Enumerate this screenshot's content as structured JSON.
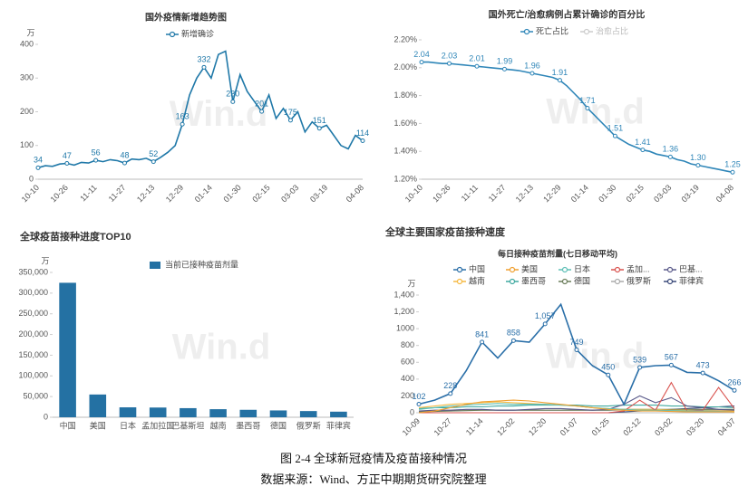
{
  "chart_data": [
    {
      "type": "line",
      "title": "国外疫情新增趋势图",
      "ylabel": "万",
      "watermark": "Win.d",
      "categories": [
        "10-10",
        null,
        null,
        null,
        "10-26",
        null,
        null,
        null,
        "11-11",
        null,
        null,
        null,
        "11-27",
        null,
        null,
        null,
        "12-13",
        null,
        null,
        null,
        "12-29",
        null,
        null,
        null,
        "01-14",
        null,
        null,
        null,
        "01-30",
        null,
        null,
        null,
        "02-15",
        null,
        null,
        null,
        "03-03",
        null,
        null,
        null,
        "03-19",
        null,
        null,
        null,
        null,
        "04-08"
      ],
      "series": [
        {
          "name": "新增确诊",
          "color": "#1f78a8",
          "values": [
            34,
            40,
            38,
            45,
            47,
            42,
            50,
            48,
            56,
            52,
            58,
            55,
            48,
            60,
            58,
            62,
            52,
            65,
            80,
            100,
            163,
            250,
            300,
            332,
            300,
            370,
            380,
            230,
            310,
            260,
            230,
            201,
            250,
            180,
            210,
            175,
            200,
            140,
            170,
            151,
            160,
            130,
            100,
            90,
            130,
            114
          ],
          "value_labels": [
            "34",
            null,
            null,
            null,
            "47",
            null,
            null,
            null,
            "56",
            null,
            null,
            null,
            "48",
            null,
            null,
            null,
            "52",
            null,
            null,
            null,
            "163",
            null,
            null,
            "332",
            null,
            null,
            null,
            "230",
            null,
            null,
            null,
            "201",
            null,
            null,
            null,
            "175",
            null,
            null,
            null,
            "151",
            null,
            null,
            null,
            null,
            null,
            "114"
          ]
        }
      ],
      "ylim": [
        0,
        400
      ],
      "yticks": [
        0,
        100,
        200,
        300,
        400
      ],
      "grid": false
    },
    {
      "type": "line",
      "title": "国外死亡/治愈病例占累计确诊的百分比",
      "watermark": "Win.d",
      "categories": [
        "10-10",
        null,
        null,
        null,
        "10-26",
        null,
        null,
        null,
        "11-11",
        null,
        null,
        null,
        "11-27",
        null,
        null,
        null,
        "12-13",
        null,
        null,
        null,
        "12-29",
        null,
        null,
        null,
        "01-14",
        null,
        null,
        null,
        "01-30",
        null,
        null,
        null,
        "02-15",
        null,
        null,
        null,
        "03-03",
        null,
        null,
        null,
        "03-19",
        null,
        null,
        null,
        null,
        "04-08"
      ],
      "series": [
        {
          "name": "死亡占比",
          "color": "#2f86b8",
          "values": [
            2.04,
            2.04,
            2.035,
            2.03,
            2.03,
            2.025,
            2.02,
            2.015,
            2.01,
            2.005,
            2.0,
            1.995,
            1.99,
            1.985,
            1.98,
            1.97,
            1.96,
            1.95,
            1.94,
            1.93,
            1.91,
            1.87,
            1.82,
            1.77,
            1.71,
            1.66,
            1.61,
            1.56,
            1.51,
            1.48,
            1.45,
            1.43,
            1.41,
            1.4,
            1.38,
            1.37,
            1.36,
            1.34,
            1.33,
            1.31,
            1.3,
            1.29,
            1.28,
            1.27,
            1.26,
            1.25
          ],
          "value_labels": [
            "2.04",
            null,
            null,
            null,
            "2.03",
            null,
            null,
            null,
            "2.01",
            null,
            null,
            null,
            "1.99",
            null,
            null,
            null,
            "1.96",
            null,
            null,
            null,
            "1.91",
            null,
            null,
            null,
            "1.71",
            null,
            null,
            null,
            "1.51",
            null,
            null,
            null,
            "1.41",
            null,
            null,
            null,
            "1.36",
            null,
            null,
            null,
            "1.30",
            null,
            null,
            null,
            null,
            "1.25"
          ]
        },
        {
          "name": "治愈占比",
          "color": "#cccccc",
          "visible": false,
          "values": [
            null,
            null,
            null,
            null,
            null,
            null,
            null,
            null,
            null,
            null,
            null,
            null,
            null,
            null,
            null,
            null,
            null,
            null,
            null,
            null,
            null,
            null,
            null,
            null,
            null,
            null,
            null,
            null,
            null,
            null,
            null,
            null,
            null,
            null,
            null,
            null,
            null,
            null,
            null,
            null,
            null,
            null,
            null,
            null,
            null,
            null
          ]
        }
      ],
      "ylim": [
        1.2,
        2.2
      ],
      "yticks": [
        {
          "value": 1.2,
          "label": "1.20%"
        },
        {
          "value": 1.4,
          "label": "1.40%"
        },
        {
          "value": 1.6,
          "label": "1.60%"
        },
        {
          "value": 1.8,
          "label": "1.80%"
        },
        {
          "value": 2.0,
          "label": "2.00%"
        },
        {
          "value": 2.2,
          "label": "2.20%"
        }
      ],
      "grid": false
    },
    {
      "type": "bar",
      "title": "全球疫苗接种进度TOP10",
      "ylabel": "万",
      "watermark": "Win.d",
      "categories": [
        "中国",
        "美国",
        "日本",
        "孟加拉国",
        "巴基斯坦",
        "越南",
        "墨西哥",
        "德国",
        "俄罗斯",
        "菲律宾"
      ],
      "series": [
        {
          "name": "当前已接种疫苗剂量",
          "color": "#2471a3",
          "values": [
            325000,
            55000,
            24000,
            23500,
            22000,
            19500,
            18000,
            16500,
            15000,
            13500
          ]
        }
      ],
      "ylim": [
        0,
        350000
      ],
      "yticks": [
        0,
        {
          "value": 50000,
          "label": "50,000"
        },
        {
          "value": 100000,
          "label": "100,000"
        },
        {
          "value": 150000,
          "label": "150,000"
        },
        {
          "value": 200000,
          "label": "200,000"
        },
        {
          "value": 250000,
          "label": "250,000"
        },
        {
          "value": 300000,
          "label": "300,000"
        },
        {
          "value": 350000,
          "label": "350,000"
        }
      ],
      "grid": false
    },
    {
      "type": "line",
      "title": "全球主要国家疫苗接种速度",
      "subtitle": "每日接种疫苗剂量(七日移动平均)",
      "ylabel": "万",
      "watermark": "Win.d",
      "categories": [
        "10-09",
        null,
        "10-27",
        null,
        "11-14",
        null,
        "12-02",
        null,
        "12-20",
        null,
        "01-07",
        null,
        "01-25",
        null,
        "02-12",
        null,
        "03-02",
        null,
        "03-20",
        null,
        "04-07"
      ],
      "series": [
        {
          "name": "中国",
          "color": "#2a6fa8",
          "values": [
            102,
            150,
            228,
            500,
            841,
            650,
            858,
            840,
            1057,
            1290,
            749,
            560,
            450,
            100,
            539,
            560,
            567,
            480,
            473,
            380,
            266
          ],
          "value_labels": [
            "102",
            null,
            "228",
            null,
            "841",
            null,
            "858",
            null,
            "1,057",
            null,
            "749",
            null,
            "450",
            null,
            "539",
            null,
            "567",
            null,
            "473",
            null,
            "266"
          ]
        },
        {
          "name": "美国",
          "color": "#f0a030",
          "values": [
            0,
            20,
            60,
            100,
            130,
            140,
            150,
            140,
            120,
            100,
            80,
            60,
            40,
            30,
            20,
            20,
            15,
            10,
            10,
            10,
            10
          ]
        },
        {
          "name": "日本",
          "color": "#5fc0b7",
          "values": [
            40,
            60,
            80,
            90,
            100,
            110,
            100,
            100,
            100,
            90,
            80,
            60,
            50,
            40,
            30,
            30,
            25,
            20,
            20,
            15,
            10
          ]
        },
        {
          "name": "孟加...",
          "color": "#d9534f",
          "values": [
            0,
            0,
            0,
            0,
            0,
            0,
            0,
            0,
            0,
            0,
            0,
            0,
            0,
            20,
            150,
            30,
            360,
            20,
            30,
            300,
            50
          ]
        },
        {
          "name": "巴基...",
          "color": "#5a5a8a",
          "values": [
            20,
            30,
            30,
            40,
            40,
            30,
            30,
            40,
            50,
            50,
            40,
            30,
            40,
            100,
            200,
            120,
            180,
            80,
            60,
            40,
            30
          ]
        },
        {
          "name": "越南",
          "color": "#f5b942",
          "values": [
            60,
            80,
            100,
            110,
            120,
            130,
            120,
            110,
            100,
            90,
            80,
            60,
            50,
            40,
            40,
            40,
            30,
            30,
            25,
            20,
            20
          ]
        },
        {
          "name": "墨西哥",
          "color": "#3fa9a0",
          "values": [
            50,
            60,
            60,
            70,
            70,
            80,
            80,
            90,
            90,
            90,
            90,
            80,
            80,
            90,
            90,
            90,
            80,
            80,
            70,
            70,
            60
          ]
        },
        {
          "name": "德国",
          "color": "#6b7d5a",
          "values": [
            10,
            15,
            20,
            25,
            30,
            30,
            30,
            30,
            30,
            30,
            30,
            30,
            30,
            40,
            40,
            40,
            40,
            40,
            40,
            40,
            40
          ]
        },
        {
          "name": "俄罗斯",
          "color": "#aaaaaa",
          "values": [
            20,
            20,
            20,
            30,
            30,
            30,
            30,
            30,
            30,
            30,
            30,
            30,
            30,
            30,
            30,
            30,
            30,
            30,
            30,
            30,
            30
          ]
        },
        {
          "name": "菲律宾",
          "color": "#3b4a7a",
          "values": [
            0,
            0,
            0,
            0,
            0,
            0,
            0,
            0,
            0,
            0,
            0,
            0,
            0,
            10,
            20,
            30,
            40,
            50,
            60,
            70,
            80
          ]
        }
      ],
      "ylim": [
        0,
        1400
      ],
      "yticks": [
        0,
        200,
        400,
        600,
        800,
        1000,
        {
          "value": 1200,
          "label": "1,200"
        },
        {
          "value": 1400,
          "label": "1,400"
        }
      ],
      "grid": false
    }
  ],
  "caption": {
    "figure": "图 2-4 全球新冠疫情及疫苗接种情况",
    "source": "数据来源：Wind、方正中期期货研究院整理"
  }
}
